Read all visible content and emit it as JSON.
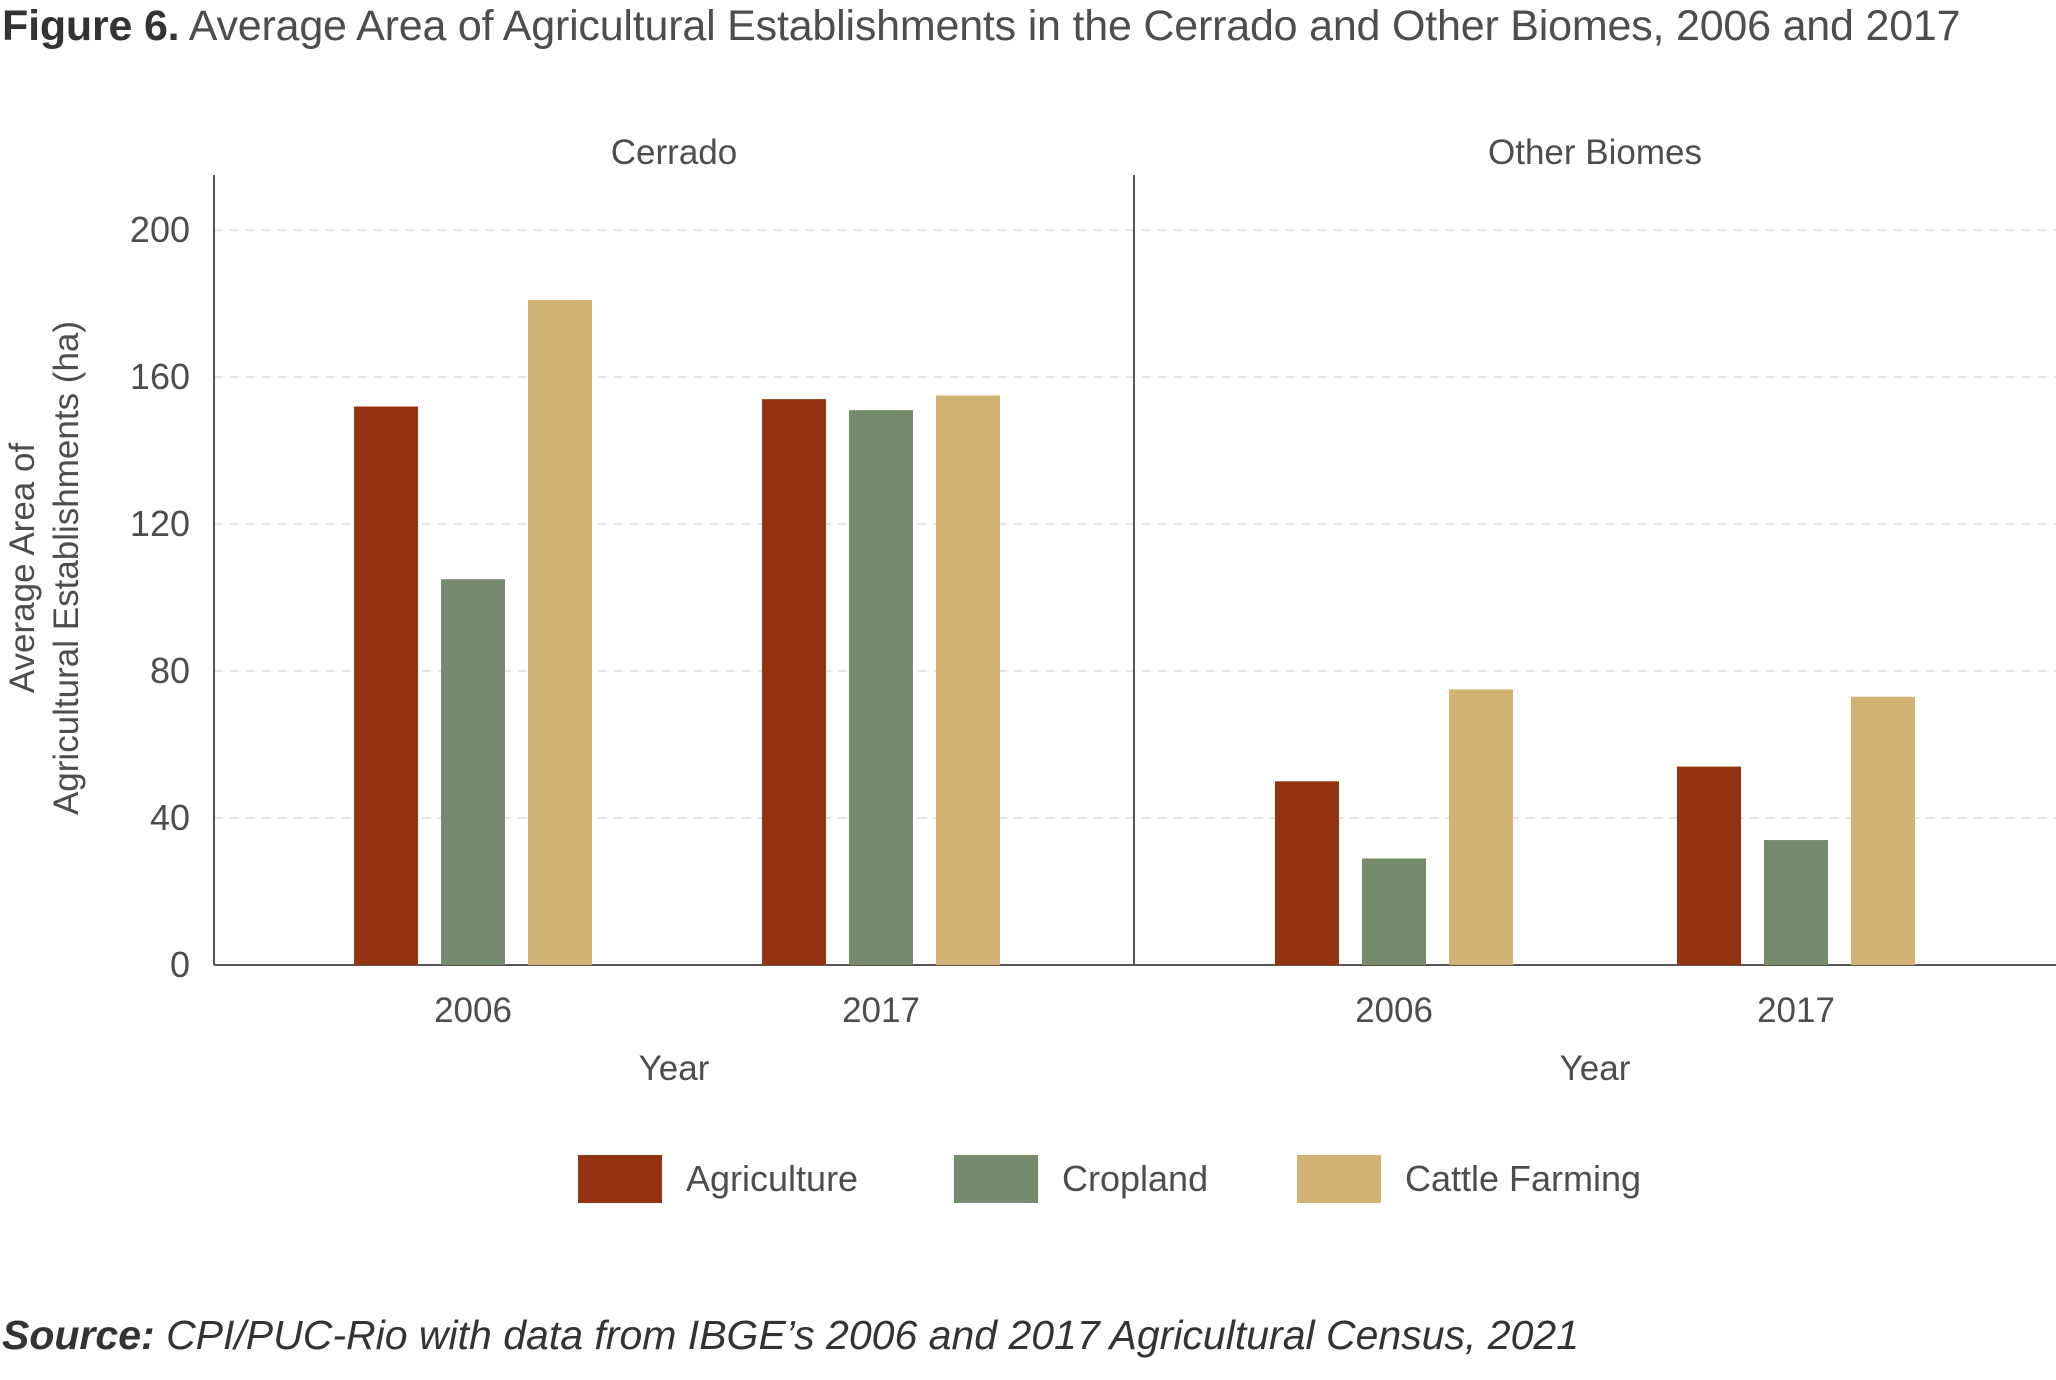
{
  "figure": {
    "number": "Figure 6.",
    "title": "Average Area of Agricultural Establishments in the Cerrado and Other Biomes, 2006 and 2017"
  },
  "source": {
    "label": "Source:",
    "text": "CPI/PUC-Rio with data from IBGE’s 2006 and 2017 Agricultural Census, 2021"
  },
  "colors": {
    "Agriculture": "#94330f",
    "Cropland": "#748b6c",
    "Cattle Farming": "#d3b373"
  },
  "chart_data": {
    "type": "bar",
    "ylabel_lines": [
      "Average Area of",
      "Agricultural Establishments (ha)"
    ],
    "ylim": [
      0,
      215
    ],
    "yticks": [
      0,
      40,
      80,
      120,
      160,
      200
    ],
    "grid": true,
    "legend_position": "bottom",
    "legend": [
      "Agriculture",
      "Cropland",
      "Cattle Farming"
    ],
    "panels": [
      {
        "title": "Cerrado",
        "xlabel": "Year",
        "categories": [
          "2006",
          "2017"
        ],
        "series": [
          {
            "name": "Agriculture",
            "values": [
              152,
              154
            ]
          },
          {
            "name": "Cropland",
            "values": [
              105,
              151
            ]
          },
          {
            "name": "Cattle Farming",
            "values": [
              181,
              155
            ]
          }
        ]
      },
      {
        "title": "Other Biomes",
        "xlabel": "Year",
        "categories": [
          "2006",
          "2017"
        ],
        "series": [
          {
            "name": "Agriculture",
            "values": [
              50,
              54
            ]
          },
          {
            "name": "Cropland",
            "values": [
              29,
              34
            ]
          },
          {
            "name": "Cattle Farming",
            "values": [
              75,
              73
            ]
          }
        ]
      }
    ]
  }
}
